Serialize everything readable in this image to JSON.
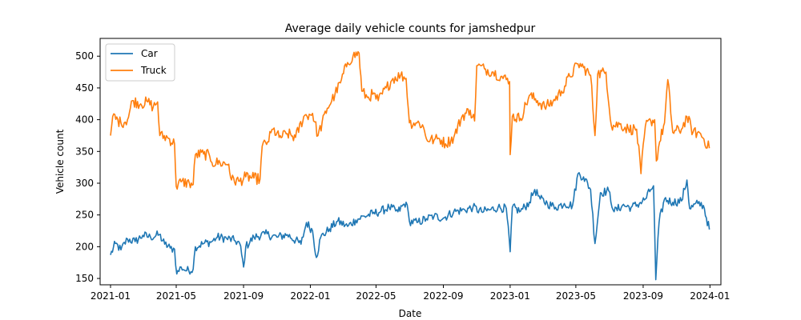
{
  "chart_data": {
    "type": "line",
    "title": "Average daily vehicle counts for jamshedpur",
    "xlabel": "Date",
    "ylabel": "Vehicle count",
    "xlim": [
      "2020-12-13",
      "2024-01-21"
    ],
    "ylim": [
      140,
      528
    ],
    "x_ticks": [
      "2021-01",
      "2021-05",
      "2021-09",
      "2022-01",
      "2022-05",
      "2022-09",
      "2023-01",
      "2023-05",
      "2023-09",
      "2024-01"
    ],
    "y_ticks": [
      150,
      200,
      250,
      300,
      350,
      400,
      450,
      500
    ],
    "grid": false,
    "legend_position": "top-left",
    "series": [
      {
        "name": "Car",
        "color": "#1f77b4",
        "points": [
          [
            "2021-01-01",
            187
          ],
          [
            "2021-01-10",
            205
          ],
          [
            "2021-01-20",
            195
          ],
          [
            "2021-02-01",
            212
          ],
          [
            "2021-02-15",
            208
          ],
          [
            "2021-03-01",
            218
          ],
          [
            "2021-03-15",
            215
          ],
          [
            "2021-03-31",
            219
          ],
          [
            "2021-04-10",
            204
          ],
          [
            "2021-04-20",
            198
          ],
          [
            "2021-04-28",
            196
          ],
          [
            "2021-05-02",
            157
          ],
          [
            "2021-05-10",
            168
          ],
          [
            "2021-05-20",
            162
          ],
          [
            "2021-06-01",
            165
          ],
          [
            "2021-06-05",
            200
          ],
          [
            "2021-06-20",
            205
          ],
          [
            "2021-07-05",
            208
          ],
          [
            "2021-07-15",
            215
          ],
          [
            "2021-08-01",
            213
          ],
          [
            "2021-08-15",
            210
          ],
          [
            "2021-08-25",
            205
          ],
          [
            "2021-09-01",
            168
          ],
          [
            "2021-09-05",
            200
          ],
          [
            "2021-09-20",
            215
          ],
          [
            "2021-10-10",
            220
          ],
          [
            "2021-11-01",
            215
          ],
          [
            "2021-11-20",
            219
          ],
          [
            "2021-12-15",
            204
          ],
          [
            "2021-12-25",
            238
          ],
          [
            "2022-01-05",
            225
          ],
          [
            "2022-01-12",
            183
          ],
          [
            "2022-01-20",
            215
          ],
          [
            "2022-02-05",
            228
          ],
          [
            "2022-02-20",
            240
          ],
          [
            "2022-03-10",
            232
          ],
          [
            "2022-03-25",
            242
          ],
          [
            "2022-04-10",
            248
          ],
          [
            "2022-04-25",
            252
          ],
          [
            "2022-05-10",
            256
          ],
          [
            "2022-05-25",
            262
          ],
          [
            "2022-06-10",
            255
          ],
          [
            "2022-06-25",
            270
          ],
          [
            "2022-07-01",
            240
          ],
          [
            "2022-07-15",
            238
          ],
          [
            "2022-08-01",
            244
          ],
          [
            "2022-08-15",
            248
          ],
          [
            "2022-09-01",
            245
          ],
          [
            "2022-09-20",
            255
          ],
          [
            "2022-10-10",
            258
          ],
          [
            "2022-10-25",
            262
          ],
          [
            "2022-11-10",
            255
          ],
          [
            "2022-11-25",
            258
          ],
          [
            "2022-12-10",
            262
          ],
          [
            "2022-12-25",
            260
          ],
          [
            "2023-01-01",
            192
          ],
          [
            "2023-01-05",
            262
          ],
          [
            "2023-01-20",
            256
          ],
          [
            "2023-02-05",
            270
          ],
          [
            "2023-02-15",
            290
          ],
          [
            "2023-02-25",
            275
          ],
          [
            "2023-03-10",
            268
          ],
          [
            "2023-03-25",
            262
          ],
          [
            "2023-04-10",
            268
          ],
          [
            "2023-04-25",
            265
          ],
          [
            "2023-05-05",
            315
          ],
          [
            "2023-05-15",
            310
          ],
          [
            "2023-05-28",
            290
          ],
          [
            "2023-06-05",
            205
          ],
          [
            "2023-06-15",
            285
          ],
          [
            "2023-06-30",
            288
          ],
          [
            "2023-07-10",
            255
          ],
          [
            "2023-07-25",
            265
          ],
          [
            "2023-08-10",
            262
          ],
          [
            "2023-08-25",
            268
          ],
          [
            "2023-09-05",
            275
          ],
          [
            "2023-09-15",
            290
          ],
          [
            "2023-09-20",
            296
          ],
          [
            "2023-09-24",
            148
          ],
          [
            "2023-09-30",
            238
          ],
          [
            "2023-10-10",
            275
          ],
          [
            "2023-10-25",
            270
          ],
          [
            "2023-11-10",
            272
          ],
          [
            "2023-11-20",
            305
          ],
          [
            "2023-11-25",
            260
          ],
          [
            "2023-12-10",
            268
          ],
          [
            "2023-12-20",
            265
          ],
          [
            "2023-12-31",
            227
          ]
        ]
      },
      {
        "name": "Truck",
        "color": "#ff7f0e",
        "points": [
          [
            "2021-01-01",
            375
          ],
          [
            "2021-01-05",
            405
          ],
          [
            "2021-01-20",
            395
          ],
          [
            "2021-02-01",
            400
          ],
          [
            "2021-02-10",
            430
          ],
          [
            "2021-02-25",
            425
          ],
          [
            "2021-03-10",
            428
          ],
          [
            "2021-03-20",
            420
          ],
          [
            "2021-03-28",
            428
          ],
          [
            "2021-04-01",
            375
          ],
          [
            "2021-04-15",
            372
          ],
          [
            "2021-04-28",
            362
          ],
          [
            "2021-05-01",
            295
          ],
          [
            "2021-05-10",
            302
          ],
          [
            "2021-05-25",
            300
          ],
          [
            "2021-06-01",
            298
          ],
          [
            "2021-06-05",
            345
          ],
          [
            "2021-06-20",
            346
          ],
          [
            "2021-07-01",
            343
          ],
          [
            "2021-07-05",
            333
          ],
          [
            "2021-07-20",
            332
          ],
          [
            "2021-08-05",
            330
          ],
          [
            "2021-08-10",
            305
          ],
          [
            "2021-08-25",
            303
          ],
          [
            "2021-09-05",
            310
          ],
          [
            "2021-09-20",
            308
          ],
          [
            "2021-10-01",
            306
          ],
          [
            "2021-10-05",
            358
          ],
          [
            "2021-10-15",
            365
          ],
          [
            "2021-10-25",
            385
          ],
          [
            "2021-11-05",
            372
          ],
          [
            "2021-11-20",
            378
          ],
          [
            "2021-12-05",
            372
          ],
          [
            "2021-12-20",
            405
          ],
          [
            "2022-01-05",
            410
          ],
          [
            "2022-01-15",
            375
          ],
          [
            "2022-02-01",
            418
          ],
          [
            "2022-02-15",
            440
          ],
          [
            "2022-02-25",
            458
          ],
          [
            "2022-03-10",
            490
          ],
          [
            "2022-03-20",
            500
          ],
          [
            "2022-03-31",
            505
          ],
          [
            "2022-04-05",
            445
          ],
          [
            "2022-04-15",
            435
          ],
          [
            "2022-04-25",
            440
          ],
          [
            "2022-05-05",
            430
          ],
          [
            "2022-05-20",
            450
          ],
          [
            "2022-06-01",
            465
          ],
          [
            "2022-06-15",
            470
          ],
          [
            "2022-06-25",
            465
          ],
          [
            "2022-07-01",
            395
          ],
          [
            "2022-07-15",
            395
          ],
          [
            "2022-07-25",
            392
          ],
          [
            "2022-08-01",
            370
          ],
          [
            "2022-08-15",
            368
          ],
          [
            "2022-08-25",
            370
          ],
          [
            "2022-09-05",
            362
          ],
          [
            "2022-09-20",
            372
          ],
          [
            "2022-10-05",
            405
          ],
          [
            "2022-10-20",
            415
          ],
          [
            "2022-10-28",
            398
          ],
          [
            "2022-11-01",
            485
          ],
          [
            "2022-11-15",
            480
          ],
          [
            "2022-12-01",
            475
          ],
          [
            "2022-12-15",
            468
          ],
          [
            "2022-12-31",
            460
          ],
          [
            "2023-01-01",
            345
          ],
          [
            "2023-01-05",
            405
          ],
          [
            "2023-01-20",
            402
          ],
          [
            "2023-02-05",
            438
          ],
          [
            "2023-02-20",
            430
          ],
          [
            "2023-03-05",
            420
          ],
          [
            "2023-03-20",
            428
          ],
          [
            "2023-04-05",
            445
          ],
          [
            "2023-04-20",
            468
          ],
          [
            "2023-05-05",
            488
          ],
          [
            "2023-05-15",
            482
          ],
          [
            "2023-05-28",
            470
          ],
          [
            "2023-06-05",
            375
          ],
          [
            "2023-06-10",
            472
          ],
          [
            "2023-06-25",
            475
          ],
          [
            "2023-07-05",
            390
          ],
          [
            "2023-07-20",
            393
          ],
          [
            "2023-08-05",
            385
          ],
          [
            "2023-08-20",
            385
          ],
          [
            "2023-08-28",
            315
          ],
          [
            "2023-09-05",
            390
          ],
          [
            "2023-09-15",
            398
          ],
          [
            "2023-09-22",
            400
          ],
          [
            "2023-09-25",
            335
          ],
          [
            "2023-10-01",
            365
          ],
          [
            "2023-10-10",
            395
          ],
          [
            "2023-10-16",
            463
          ],
          [
            "2023-10-25",
            380
          ],
          [
            "2023-11-10",
            385
          ],
          [
            "2023-11-20",
            405
          ],
          [
            "2023-12-01",
            380
          ],
          [
            "2023-12-15",
            378
          ],
          [
            "2023-12-31",
            355
          ]
        ]
      }
    ]
  }
}
